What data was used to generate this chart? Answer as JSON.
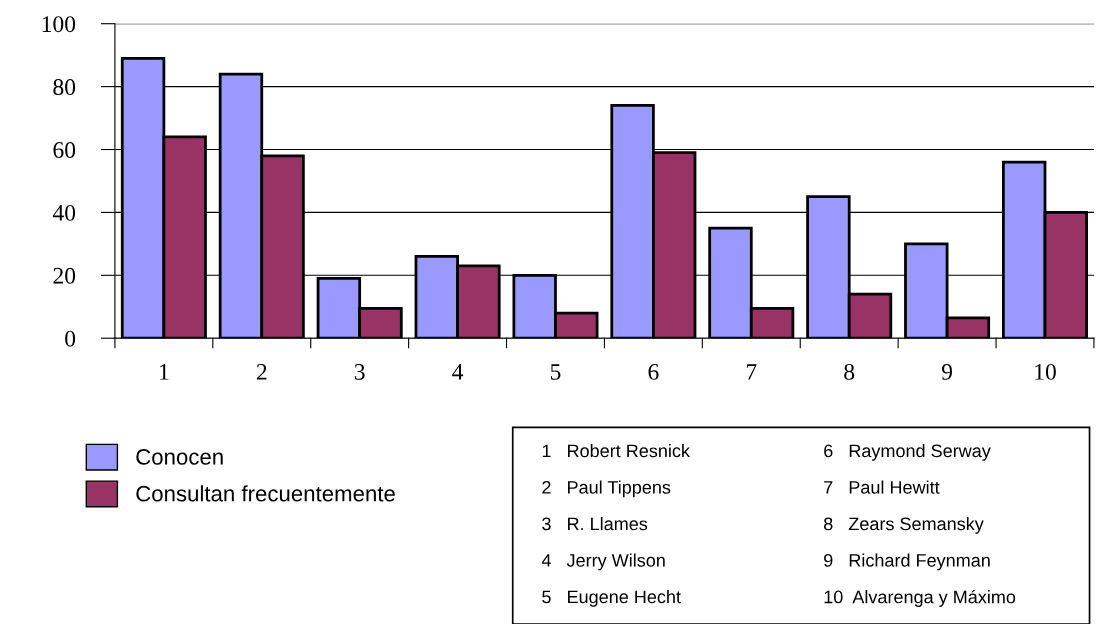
{
  "chart_data": {
    "type": "bar",
    "categories": [
      "1",
      "2",
      "3",
      "4",
      "5",
      "6",
      "7",
      "8",
      "9",
      "10"
    ],
    "series": [
      {
        "name": "Conocen",
        "color": "#9999ff",
        "values": [
          89,
          84,
          19,
          26,
          20,
          74,
          35,
          45,
          30,
          56
        ]
      },
      {
        "name": "Consultan frecuentemente",
        "color": "#993366",
        "values": [
          64,
          58,
          9.5,
          23,
          8,
          59,
          9.5,
          14,
          6.5,
          40
        ]
      }
    ],
    "ylim": [
      0,
      100
    ],
    "yticks": [
      0,
      20,
      40,
      60,
      80,
      100
    ],
    "grid": "y",
    "legend": "bottom left",
    "annotations": [
      "1   Robert Resnick",
      "2   Paul Tippens",
      "3   R. Llames",
      "4   Jerry Wilson",
      "5   Eugene Hecht",
      "6   Raymond Serway",
      "7   Paul Hewitt",
      "8   Zears Semansky",
      "9   Richard Feynman",
      "10  Alvarenga y Máximo"
    ]
  }
}
